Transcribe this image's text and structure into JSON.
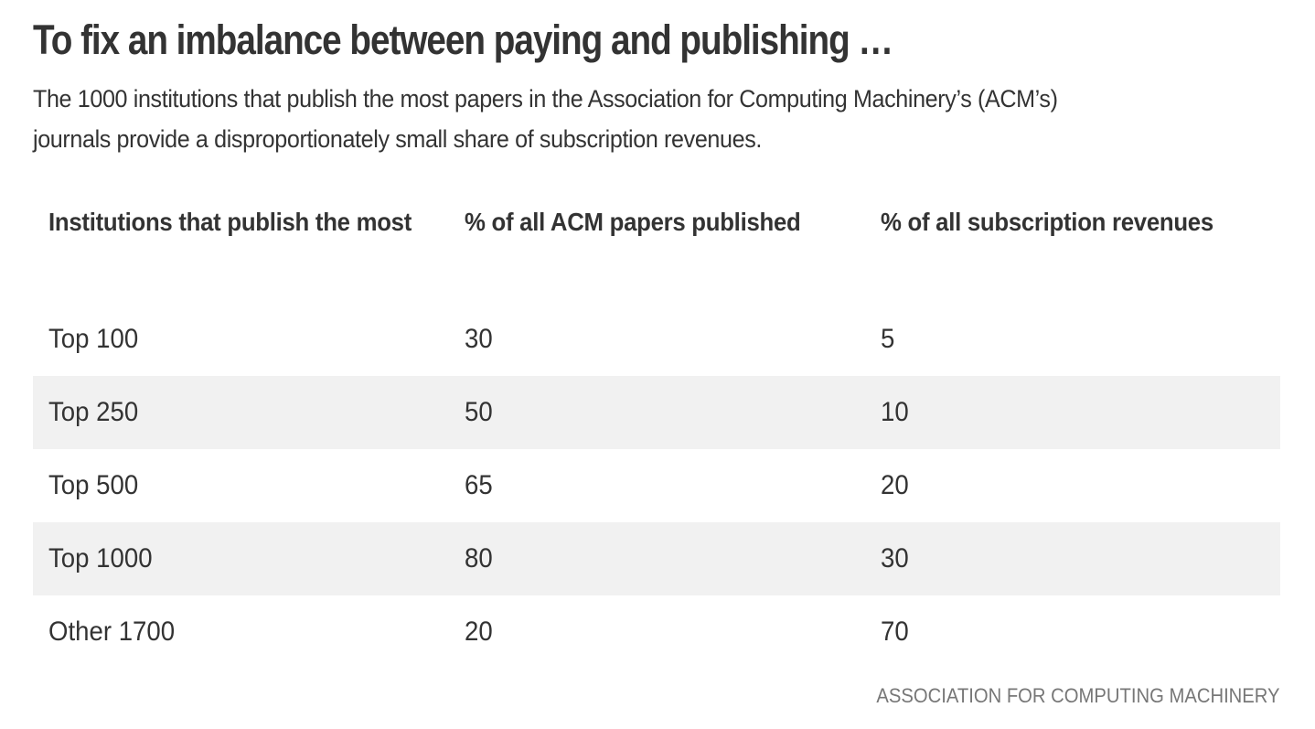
{
  "title": "To fix an imbalance between paying and publishing …",
  "subtitle_lines": [
    "The 1000 institutions that publish the most papers in the Association for Computing Machinery’s (ACM’s)",
    "journals provide a disproportionately small share of subscription revenues."
  ],
  "colors": {
    "text": "#333333",
    "band": "#f1f1f1",
    "source": "#777777"
  },
  "chart_data": {
    "type": "table",
    "title": "To fix an imbalance between paying and publishing …",
    "subtitle": "The 1000 institutions that publish the most papers in the Association for Computing Machinery’s (ACM’s) journals provide a disproportionately small share of subscription revenues.",
    "columns": [
      "Institutions that publish the most",
      "% of all ACM papers published",
      "% of all subscription revenues"
    ],
    "rows": [
      [
        "Top 100",
        "30",
        "5"
      ],
      [
        "Top 250",
        "50",
        "10"
      ],
      [
        "Top 500",
        "65",
        "20"
      ],
      [
        "Top 1000",
        "80",
        "30"
      ],
      [
        "Other 1700",
        "20",
        "70"
      ]
    ],
    "source": "ASSOCIATION FOR COMPUTING MACHINERY"
  }
}
